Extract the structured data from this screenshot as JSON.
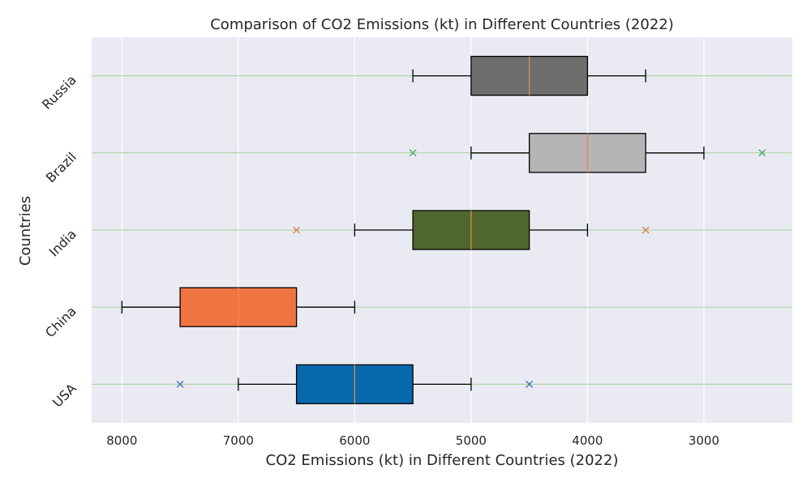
{
  "chart_data": {
    "type": "boxplot",
    "title": "Comparison of CO2 Emissions (kt) in Different Countries (2022)",
    "xlabel": "CO2 Emissions (kt) in Different Countries (2022)",
    "ylabel": "Countries",
    "x_axis_inverted": true,
    "xlim": [
      8260,
      2240
    ],
    "xticks": [
      8000,
      7000,
      6000,
      5000,
      4000,
      3000
    ],
    "grid": "x-major",
    "categories": [
      "USA",
      "China",
      "India",
      "Brazil",
      "Russia"
    ],
    "boxes": [
      {
        "name": "USA",
        "whisker_low": 5000,
        "q1": 5500,
        "median": 6000,
        "q3": 6500,
        "whisker_high": 7000,
        "outliers": [
          4500,
          7500
        ],
        "color": "#0868ac"
      },
      {
        "name": "China",
        "whisker_low": 6000,
        "q1": 6500,
        "median": 7000,
        "q3": 7500,
        "whisker_high": 8000,
        "outliers": [],
        "color": "#ef7440"
      },
      {
        "name": "India",
        "whisker_low": 4000,
        "q1": 4500,
        "median": 5000,
        "q3": 5500,
        "whisker_high": 6000,
        "outliers": [
          3500,
          6500
        ],
        "color": "#4e672e"
      },
      {
        "name": "Brazil",
        "whisker_low": 3000,
        "q1": 3500,
        "median": 4000,
        "q3": 4500,
        "whisker_high": 5000,
        "outliers": [
          2500,
          5500
        ],
        "color": "#b5b5b5"
      },
      {
        "name": "Russia",
        "whisker_low": 3500,
        "q1": 4000,
        "median": 4500,
        "q3": 5000,
        "whisker_high": 5500,
        "outliers": [],
        "color": "#6e6e6e"
      }
    ],
    "colors": {
      "plot_background": "#eaeaf2",
      "gridline": "#ffffff",
      "median_line": "#e8894d",
      "row_line": "#a4d199",
      "outlier_colors": [
        "#4c72b0",
        "#dd8452",
        "#55a868"
      ]
    }
  }
}
